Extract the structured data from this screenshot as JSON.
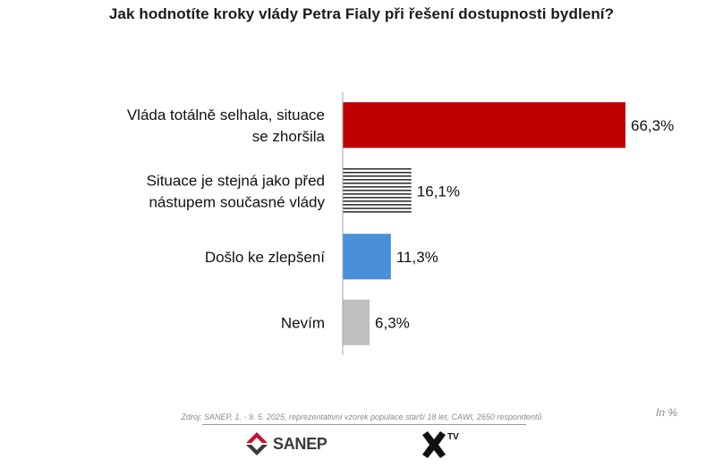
{
  "title": "Jak hodnotíte kroky vlády Petra Fialy při řešení dostupnosti bydlení?",
  "source": "Zdroj: SANEP, 1. - 9. 5. 2025, reprezentativní vzorek populace starší 18 let, CAWI, 2650 respondentů",
  "unit_note": "In %",
  "logos": {
    "sanep": "SANEP",
    "xtv": "TV"
  },
  "chart_data": {
    "type": "bar",
    "orientation": "horizontal",
    "title": "Jak hodnotíte kroky vlády Petra Fialy při řešení dostupnosti bydlení?",
    "categories": [
      "Vláda totálně selhala, situace se zhoršila",
      "Situace je stejná jako před nástupem současné vlády",
      "Došlo ke zlepšení",
      "Nevím"
    ],
    "values": [
      66.3,
      16.1,
      11.3,
      6.3
    ],
    "value_labels": [
      "66,3%",
      "16,1%",
      "11,3%",
      "6,3%"
    ],
    "bar_styles": [
      "solid",
      "horizontal-stripes",
      "solid",
      "solid"
    ],
    "bar_colors": [
      "#c00000",
      "#000000",
      "#4a90d9",
      "#bfbfbf"
    ],
    "xlim": [
      0,
      66.3
    ],
    "grid": false,
    "legend": "none"
  }
}
